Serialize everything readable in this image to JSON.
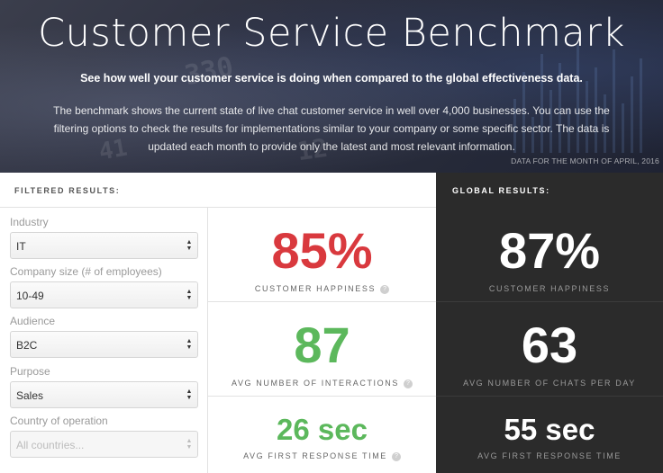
{
  "hero": {
    "title": "Customer Service Benchmark",
    "subtitle": "See how well your customer service is doing when compared to the global effectiveness data.",
    "description": "The benchmark shows the current state of live chat customer service in well over 4,000 businesses. You can use the filtering options to check the results for implementations similar to your company or some specific sector. The data is updated each month to provide only the latest and most relevant information.",
    "date_note": "DATA FOR THE MONTH OF APRIL, 2016"
  },
  "filtered": {
    "heading": "FILTERED RESULTS:",
    "filters": [
      {
        "label": "Industry",
        "value": "IT",
        "disabled": false
      },
      {
        "label": "Company size (# of employees)",
        "value": "10-49",
        "disabled": false
      },
      {
        "label": "Audience",
        "value": "B2C",
        "disabled": false
      },
      {
        "label": "Purpose",
        "value": "Sales",
        "disabled": false
      },
      {
        "label": "Country of operation",
        "value": "All countries...",
        "disabled": true
      }
    ],
    "metrics": [
      {
        "value": "85%",
        "label": "CUSTOMER HAPPINESS",
        "color": "#d9393e"
      },
      {
        "value": "87",
        "label": "AVG NUMBER OF INTERACTIONS",
        "color": "#5cb85c"
      },
      {
        "value": "26 sec",
        "label": "AVG FIRST RESPONSE TIME",
        "color": "#5cb85c"
      }
    ],
    "help_glyph": "?"
  },
  "global": {
    "heading": "GLOBAL RESULTS:",
    "metrics": [
      {
        "value": "87%",
        "label": "CUSTOMER HAPPINESS"
      },
      {
        "value": "63",
        "label": "AVG NUMBER OF CHATS PER DAY"
      },
      {
        "value": "55 sec",
        "label": "AVG FIRST RESPONSE TIME"
      }
    ]
  },
  "icons": {
    "help": "help-circle-icon",
    "select_arrows": "up-down-arrows-icon"
  }
}
